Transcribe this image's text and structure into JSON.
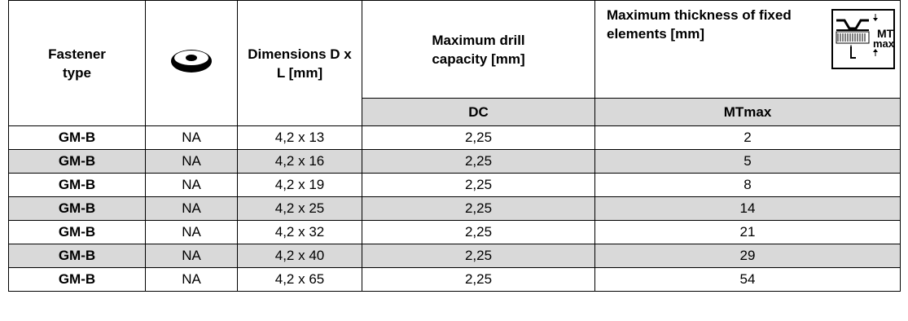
{
  "header": {
    "fastener_type": "Fastener type",
    "washer_icon": "washer-profile-icon",
    "dimensions": "Dimensions D x L [mm]",
    "max_drill": "Maximum drill capacity [mm]",
    "max_thickness": "Maximum thickness of fixed elements [mm]",
    "mt_diagram_label_top": "MT",
    "mt_diagram_label_bottom": "max",
    "sub_dc": "DC",
    "sub_mtmax": "MTmax"
  },
  "rows": [
    {
      "type": "GM-B",
      "washer": "NA",
      "dims": "4,2 x 13",
      "dc": "2,25",
      "mt": "2"
    },
    {
      "type": "GM-B",
      "washer": "NA",
      "dims": "4,2 x 16",
      "dc": "2,25",
      "mt": "5"
    },
    {
      "type": "GM-B",
      "washer": "NA",
      "dims": "4,2 x 19",
      "dc": "2,25",
      "mt": "8"
    },
    {
      "type": "GM-B",
      "washer": "NA",
      "dims": "4,2 x 25",
      "dc": "2,25",
      "mt": "14"
    },
    {
      "type": "GM-B",
      "washer": "NA",
      "dims": "4,2 x 32",
      "dc": "2,25",
      "mt": "21"
    },
    {
      "type": "GM-B",
      "washer": "NA",
      "dims": "4,2 x 40",
      "dc": "2,25",
      "mt": "29"
    },
    {
      "type": "GM-B",
      "washer": "NA",
      "dims": "4,2 x 65",
      "dc": "2,25",
      "mt": "54"
    }
  ],
  "colors": {
    "row_gray": "#d9d9d9"
  }
}
